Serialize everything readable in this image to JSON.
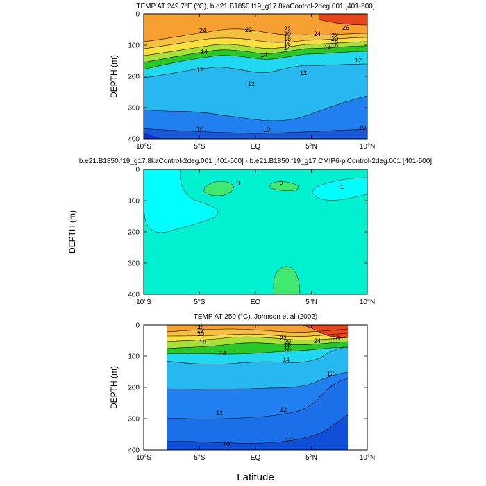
{
  "figure": {
    "xlabel": "Latitude",
    "xticks": [
      "10°S",
      "5°S",
      "EQ",
      "5°N",
      "10°N"
    ],
    "yticks": [
      "0",
      "100",
      "200",
      "300",
      "400"
    ]
  },
  "chart_data": [
    {
      "type": "heatmap",
      "title": "TEMP AT 249.7°E (°C), b.e21.B1850.f19_g17.8kaControl-2deg.001 [401-500]",
      "ylabel": "DEPTH (m)",
      "xlim": [
        -10,
        10
      ],
      "ylim": [
        400,
        0
      ],
      "depth_levels": [
        0,
        20,
        40,
        60,
        80,
        100,
        120,
        150,
        200,
        300,
        400
      ],
      "contour_labels": [
        "24",
        "22",
        "22",
        "20",
        "18",
        "16",
        "14",
        "14",
        "14",
        "12",
        "12",
        "12",
        "12",
        "10",
        "10",
        "10",
        "26",
        "24",
        "22",
        "20",
        "18",
        "16",
        "14"
      ],
      "colors": {
        "warm": "#e8451a",
        "orange": "#f5a030",
        "yellow": "#f7e040",
        "green": "#28c828",
        "cyan": "#20d8f0",
        "lightblue": "#28b8f0",
        "blue": "#2080f0",
        "deepblue": "#1030c8"
      }
    },
    {
      "type": "heatmap",
      "title": "b.e21.B1850.f19_g17.8kaControl-2deg.001 [401-500] - b.e21.B1850.f19_g17.CMIP6-piControl-2deg.001 [401-500]",
      "ylabel": "DEPTH (m)",
      "xlim": [
        -10,
        10
      ],
      "ylim": [
        400,
        0
      ],
      "contour_labels": [
        "0",
        "0",
        "-1"
      ],
      "colors": {
        "zero": "#00f0d0",
        "negative": "#00ffff",
        "positive": "#40e870"
      }
    },
    {
      "type": "heatmap",
      "title": "TEMP AT 250 (°C), Johnson et al (2002)",
      "ylabel": "DEPTH (m)",
      "xlim": [
        -10,
        10
      ],
      "ylim": [
        400,
        0
      ],
      "data_extent_lat": [
        -8,
        8.5
      ],
      "contour_labels": [
        "24",
        "22",
        "20",
        "18",
        "22",
        "20",
        "18",
        "16",
        "24",
        "26",
        "14",
        "14",
        "12",
        "12",
        "12",
        "10",
        "10"
      ],
      "colors": {
        "warm": "#e8451a",
        "orange": "#f5a030",
        "yellow": "#f7e040",
        "green": "#28c828",
        "cyan": "#20d8f0",
        "lightblue": "#28b8f0",
        "blue": "#2080f0",
        "deepblue": "#1030c8"
      }
    }
  ]
}
